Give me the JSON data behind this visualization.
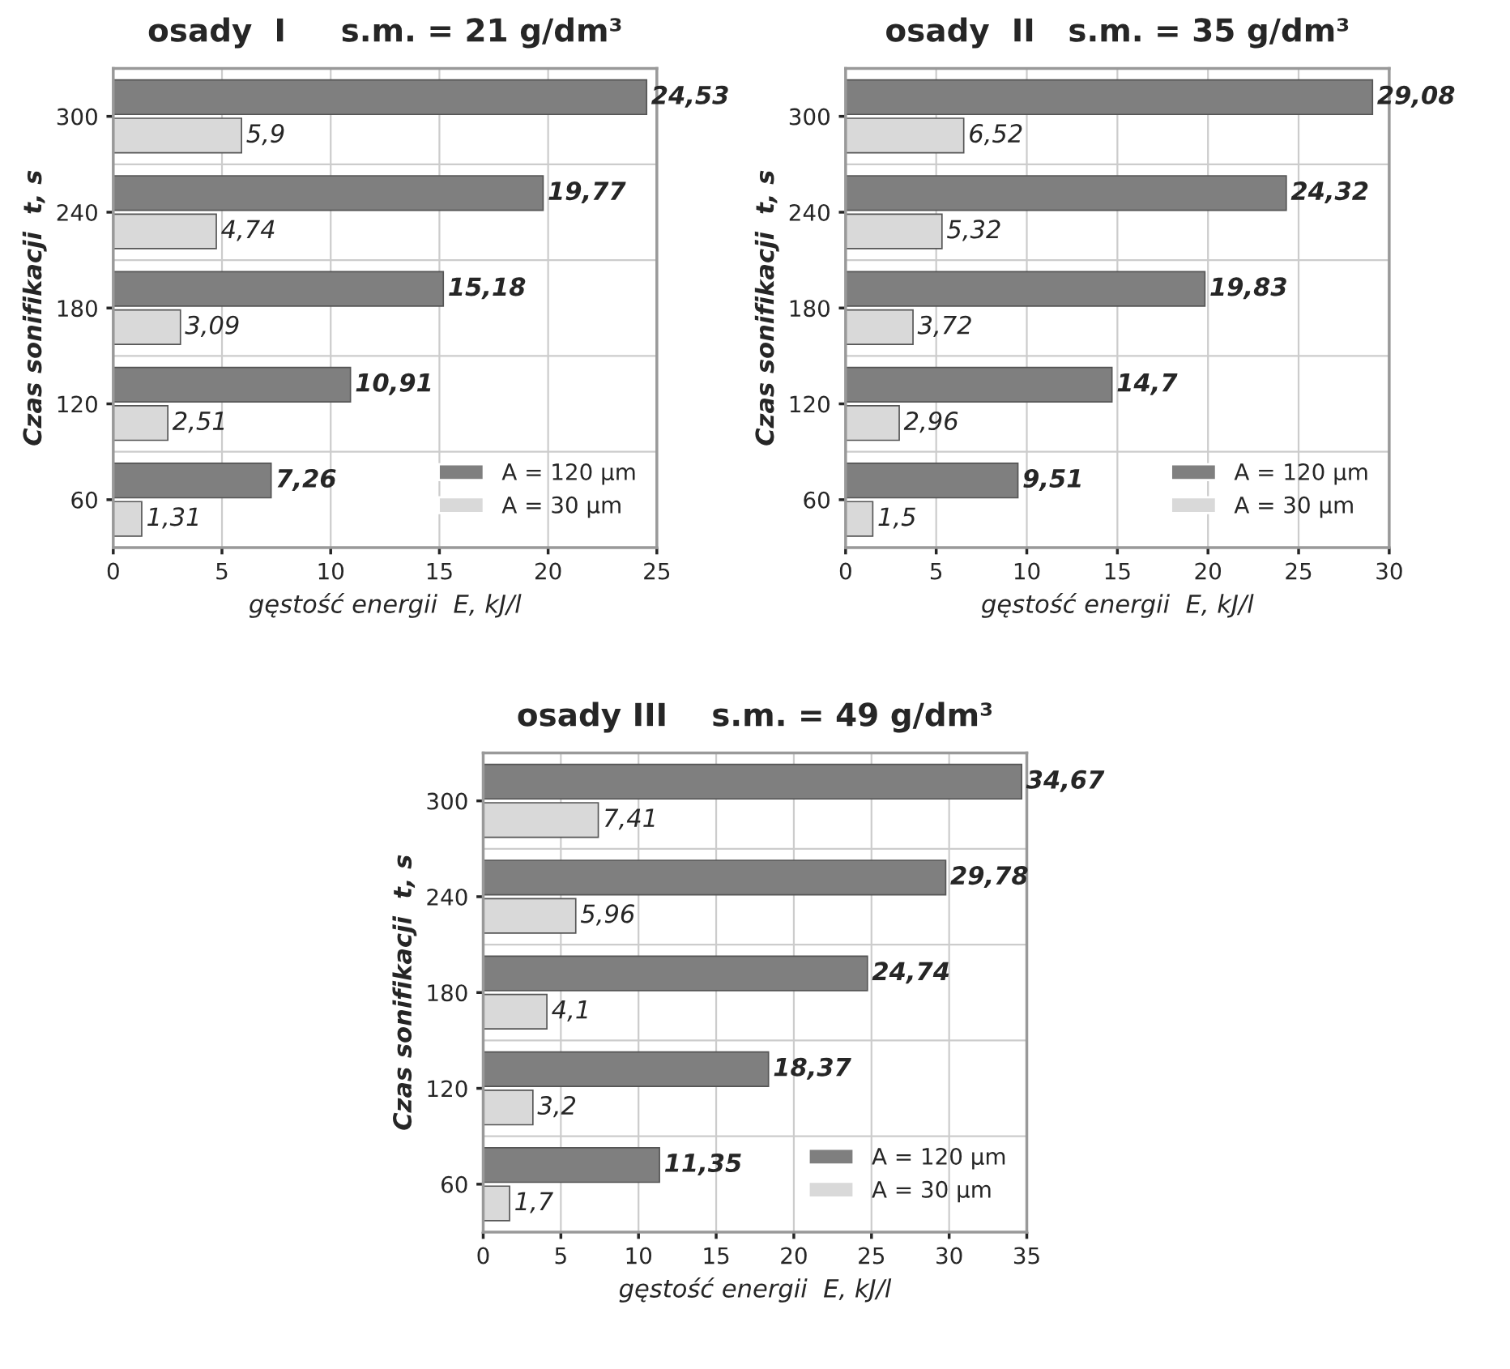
{
  "chart_data": [
    {
      "type": "bar",
      "orientation": "horizontal",
      "title": "osady  I     s.m. = 21 g/dm³",
      "xlabel": "gęstość energii  E, kJ/l",
      "ylabel": "Czas sonifikacji  t, s",
      "categories": [
        "300",
        "240",
        "180",
        "120",
        "60"
      ],
      "xlim": [
        0,
        25
      ],
      "xticks": [
        0,
        5,
        10,
        15,
        20,
        25
      ],
      "grid": "x",
      "legend": "bottom right",
      "series": [
        {
          "name": "A = 120 µm",
          "color": "#7f7f7f",
          "values": [
            24.53,
            19.77,
            15.18,
            10.91,
            7.26
          ],
          "value_labels": [
            "24,53",
            "19,77",
            "15,18",
            "10,91",
            "7,26"
          ]
        },
        {
          "name": "A = 30 µm",
          "color": "#d9d9d9",
          "values": [
            5.9,
            4.74,
            3.09,
            2.51,
            1.31
          ],
          "value_labels": [
            "5,9",
            "4,74",
            "3,09",
            "2,51",
            "1,31"
          ]
        }
      ]
    },
    {
      "type": "bar",
      "orientation": "horizontal",
      "title": "osady  II   s.m. = 35 g/dm³",
      "xlabel": "gęstość energii  E, kJ/l",
      "ylabel": "Czas sonifikacji  t, s",
      "categories": [
        "300",
        "240",
        "180",
        "120",
        "60"
      ],
      "xlim": [
        0,
        30
      ],
      "xticks": [
        0,
        5,
        10,
        15,
        20,
        25,
        30
      ],
      "grid": "x",
      "legend": "bottom right",
      "series": [
        {
          "name": "A = 120 µm",
          "color": "#7f7f7f",
          "values": [
            29.08,
            24.32,
            19.83,
            14.7,
            9.51
          ],
          "value_labels": [
            "29,08",
            "24,32",
            "19,83",
            "14,7",
            "9,51"
          ]
        },
        {
          "name": "A = 30 µm",
          "color": "#d9d9d9",
          "values": [
            6.52,
            5.32,
            3.72,
            2.96,
            1.5
          ],
          "value_labels": [
            "6,52",
            "5,32",
            "3,72",
            "2,96",
            "1,5"
          ]
        }
      ]
    },
    {
      "type": "bar",
      "orientation": "horizontal",
      "title": "osady III    s.m. = 49 g/dm³",
      "xlabel": "gęstość energii  E, kJ/l",
      "ylabel": "Czas sonifikacji  t, s",
      "categories": [
        "300",
        "240",
        "180",
        "120",
        "60"
      ],
      "xlim": [
        0,
        35
      ],
      "xticks": [
        0,
        5,
        10,
        15,
        20,
        25,
        30,
        35
      ],
      "grid": "x",
      "legend": "bottom right",
      "series": [
        {
          "name": "A = 120 µm",
          "color": "#7f7f7f",
          "values": [
            34.67,
            29.78,
            24.74,
            18.37,
            11.35
          ],
          "value_labels": [
            "34,67",
            "29,78",
            "24,74",
            "18,37",
            "11,35"
          ]
        },
        {
          "name": "A = 30 µm",
          "color": "#d9d9d9",
          "values": [
            7.41,
            5.96,
            4.1,
            3.2,
            1.7
          ],
          "value_labels": [
            "7,41",
            "5,96",
            "4,1",
            "3,2",
            "1,7"
          ]
        }
      ]
    }
  ]
}
